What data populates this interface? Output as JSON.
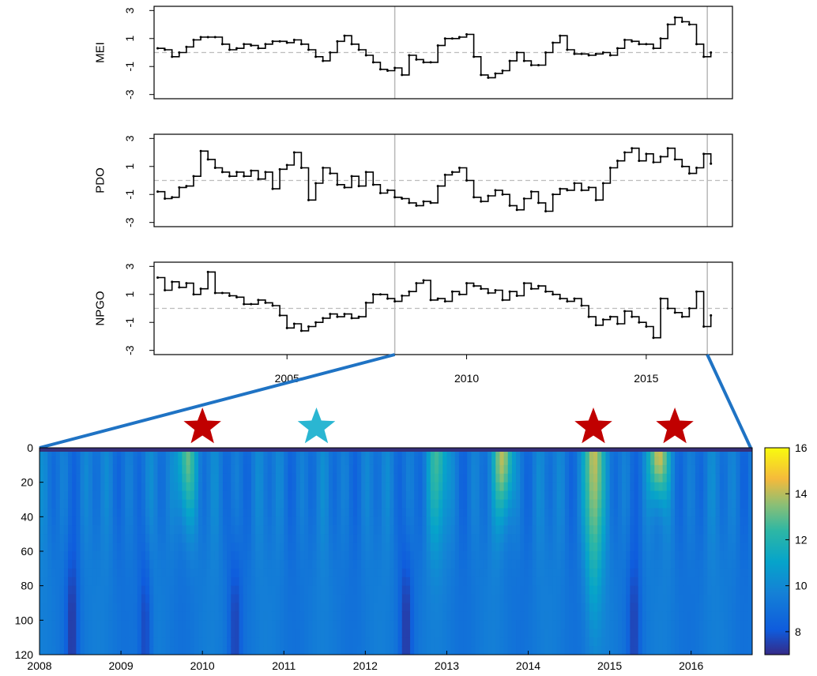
{
  "chart_data": [
    {
      "type": "line",
      "ylabel": "MEI",
      "xlim": [
        2001.3,
        2017.4
      ],
      "ylim": [
        -3.3,
        3.3
      ],
      "yticks": [
        "3",
        "1",
        "-1",
        "-3"
      ],
      "xticks": [],
      "reference_line": 0,
      "vlines": [
        2008.0,
        2016.7
      ],
      "series": [
        {
          "x": [
            2001.4,
            2001.6,
            2001.8,
            2002.0,
            2002.2,
            2002.4,
            2002.6,
            2002.8,
            2003.0,
            2003.2,
            2003.4,
            2003.6,
            2003.8,
            2004.0,
            2004.2,
            2004.4,
            2004.6,
            2004.8,
            2005.0,
            2005.2,
            2005.4,
            2005.6,
            2005.8,
            2006.0,
            2006.2,
            2006.4,
            2006.6,
            2006.8,
            2007.0,
            2007.2,
            2007.4,
            2007.6,
            2007.8,
            2008.0,
            2008.2,
            2008.4,
            2008.6,
            2008.8,
            2009.0,
            2009.2,
            2009.4,
            2009.6,
            2009.8,
            2010.0,
            2010.2,
            2010.4,
            2010.6,
            2010.8,
            2011.0,
            2011.2,
            2011.4,
            2011.6,
            2011.8,
            2012.0,
            2012.2,
            2012.4,
            2012.6,
            2012.8,
            2013.0,
            2013.2,
            2013.4,
            2013.6,
            2013.8,
            2014.0,
            2014.2,
            2014.4,
            2014.6,
            2014.8,
            2015.0,
            2015.2,
            2015.4,
            2015.6,
            2015.8,
            2016.0,
            2016.2,
            2016.4,
            2016.6,
            2016.8
          ],
          "values": [
            0.3,
            0.2,
            -0.3,
            0.0,
            0.4,
            0.9,
            1.1,
            1.1,
            1.1,
            0.6,
            0.2,
            0.3,
            0.6,
            0.5,
            0.3,
            0.6,
            0.8,
            0.8,
            0.7,
            0.9,
            0.6,
            0.2,
            -0.3,
            -0.6,
            0.0,
            0.8,
            1.2,
            0.6,
            0.2,
            -0.2,
            -0.7,
            -1.2,
            -1.3,
            -1.1,
            -1.6,
            -0.2,
            -0.5,
            -0.7,
            -0.7,
            0.5,
            1.0,
            1.0,
            1.1,
            1.3,
            -0.3,
            -1.6,
            -1.8,
            -1.5,
            -1.3,
            -0.6,
            0.0,
            -0.6,
            -0.9,
            -0.9,
            0.0,
            0.7,
            1.2,
            0.2,
            -0.1,
            -0.1,
            -0.2,
            -0.1,
            0.0,
            -0.2,
            0.3,
            0.9,
            0.8,
            0.6,
            0.6,
            0.3,
            1.0,
            2.0,
            2.5,
            2.2,
            2.0,
            0.6,
            -0.3,
            0.0
          ]
        }
      ]
    },
    {
      "type": "line",
      "ylabel": "PDO",
      "xlim": [
        2001.3,
        2017.4
      ],
      "ylim": [
        -3.3,
        3.3
      ],
      "yticks": [
        "3",
        "1",
        "-1",
        "-3"
      ],
      "xticks": [],
      "reference_line": 0,
      "vlines": [
        2008.0,
        2016.7
      ],
      "series": [
        {
          "x": [
            2001.4,
            2001.6,
            2001.8,
            2002.0,
            2002.2,
            2002.4,
            2002.6,
            2002.8,
            2003.0,
            2003.2,
            2003.4,
            2003.6,
            2003.8,
            2004.0,
            2004.2,
            2004.4,
            2004.6,
            2004.8,
            2005.0,
            2005.2,
            2005.4,
            2005.6,
            2005.8,
            2006.0,
            2006.2,
            2006.4,
            2006.6,
            2006.8,
            2007.0,
            2007.2,
            2007.4,
            2007.6,
            2007.8,
            2008.0,
            2008.2,
            2008.4,
            2008.6,
            2008.8,
            2009.0,
            2009.2,
            2009.4,
            2009.6,
            2009.8,
            2010.0,
            2010.2,
            2010.4,
            2010.6,
            2010.8,
            2011.0,
            2011.2,
            2011.4,
            2011.6,
            2011.8,
            2012.0,
            2012.2,
            2012.4,
            2012.6,
            2012.8,
            2013.0,
            2013.2,
            2013.4,
            2013.6,
            2013.8,
            2014.0,
            2014.2,
            2014.4,
            2014.6,
            2014.8,
            2015.0,
            2015.2,
            2015.4,
            2015.6,
            2015.8,
            2016.0,
            2016.2,
            2016.4,
            2016.6,
            2016.8
          ],
          "values": [
            -0.8,
            -1.3,
            -1.2,
            -0.5,
            -0.4,
            0.3,
            2.1,
            1.5,
            0.9,
            0.6,
            0.3,
            0.6,
            0.3,
            0.7,
            0.1,
            0.6,
            -0.6,
            0.8,
            1.1,
            2.0,
            0.9,
            -1.4,
            -0.2,
            0.9,
            0.5,
            -0.3,
            -0.5,
            0.3,
            -0.4,
            0.6,
            -0.3,
            -0.9,
            -0.7,
            -1.2,
            -1.3,
            -1.6,
            -1.8,
            -1.5,
            -1.6,
            -0.4,
            0.4,
            0.6,
            0.9,
            0.0,
            -1.2,
            -1.5,
            -1.1,
            -0.7,
            -1.0,
            -1.8,
            -2.1,
            -1.3,
            -0.8,
            -1.6,
            -2.2,
            -1.0,
            -0.6,
            -0.7,
            -0.2,
            -0.7,
            -0.5,
            -1.4,
            -0.2,
            0.9,
            1.4,
            2.0,
            2.3,
            1.4,
            1.9,
            1.3,
            1.7,
            2.3,
            1.5,
            1.0,
            0.5,
            0.9,
            1.9,
            1.2
          ]
        }
      ]
    },
    {
      "type": "line",
      "ylabel": "NPGO",
      "xlim": [
        2001.3,
        2017.4
      ],
      "ylim": [
        -3.3,
        3.3
      ],
      "yticks": [
        "3",
        "1",
        "-1",
        "-3"
      ],
      "xticks": [
        "2005",
        "2010",
        "2015"
      ],
      "reference_line": 0,
      "vlines": [
        2008.0,
        2016.7
      ],
      "series": [
        {
          "x": [
            2001.4,
            2001.6,
            2001.8,
            2002.0,
            2002.2,
            2002.4,
            2002.6,
            2002.8,
            2003.0,
            2003.2,
            2003.4,
            2003.6,
            2003.8,
            2004.0,
            2004.2,
            2004.4,
            2004.6,
            2004.8,
            2005.0,
            2005.2,
            2005.4,
            2005.6,
            2005.8,
            2006.0,
            2006.2,
            2006.4,
            2006.6,
            2006.8,
            2007.0,
            2007.2,
            2007.4,
            2007.6,
            2007.8,
            2008.0,
            2008.2,
            2008.4,
            2008.6,
            2008.8,
            2009.0,
            2009.2,
            2009.4,
            2009.6,
            2009.8,
            2010.0,
            2010.2,
            2010.4,
            2010.6,
            2010.8,
            2011.0,
            2011.2,
            2011.4,
            2011.6,
            2011.8,
            2012.0,
            2012.2,
            2012.4,
            2012.6,
            2012.8,
            2013.0,
            2013.2,
            2013.4,
            2013.6,
            2013.8,
            2014.0,
            2014.2,
            2014.4,
            2014.6,
            2014.8,
            2015.0,
            2015.2,
            2015.4,
            2015.6,
            2015.8,
            2016.0,
            2016.2,
            2016.4,
            2016.6,
            2016.8
          ],
          "values": [
            2.2,
            1.3,
            1.9,
            1.5,
            1.8,
            1.0,
            1.4,
            2.6,
            1.1,
            1.1,
            0.9,
            0.8,
            0.3,
            0.3,
            0.6,
            0.4,
            0.2,
            -0.5,
            -1.4,
            -1.1,
            -1.6,
            -1.3,
            -1.0,
            -0.7,
            -0.4,
            -0.6,
            -0.4,
            -0.7,
            -0.6,
            0.4,
            1.0,
            1.0,
            0.7,
            0.5,
            0.9,
            1.2,
            1.8,
            2.0,
            0.6,
            0.7,
            0.5,
            1.2,
            1.0,
            1.8,
            1.6,
            1.4,
            1.1,
            1.3,
            0.6,
            1.2,
            0.9,
            1.8,
            1.4,
            1.6,
            1.2,
            1.0,
            0.7,
            0.5,
            0.7,
            0.2,
            -0.6,
            -1.2,
            -0.8,
            -0.6,
            -1.1,
            -0.2,
            -0.6,
            -1.0,
            -1.3,
            -2.1,
            0.7,
            0.0,
            -0.3,
            -0.6,
            0.0,
            1.2,
            -1.3,
            -0.5
          ]
        }
      ]
    },
    {
      "type": "heatmap",
      "xticks": [
        "2008",
        "2009",
        "2010",
        "2011",
        "2012",
        "2013",
        "2014",
        "2015",
        "2016"
      ],
      "yticks": [
        "0",
        "20",
        "40",
        "60",
        "80",
        "100",
        "120"
      ],
      "ylim": [
        0,
        120
      ],
      "colorbar_ticks": [
        "16",
        "14",
        "12",
        "10",
        "8"
      ],
      "colorbar_range": [
        7,
        16
      ],
      "stars": [
        {
          "x": 2010.0,
          "color": "#c00000"
        },
        {
          "x": 2011.4,
          "color": "#2ab6d2"
        },
        {
          "x": 2014.8,
          "color": "#c00000"
        },
        {
          "x": 2015.8,
          "color": "#c00000"
        }
      ],
      "warm_bands": [
        {
          "x": 2009.8,
          "value": 13.5,
          "depth": 40
        },
        {
          "x": 2013.7,
          "value": 14.2,
          "depth": 35
        },
        {
          "x": 2014.8,
          "value": 14.6,
          "depth": 75
        },
        {
          "x": 2015.6,
          "value": 14.5,
          "depth": 25
        },
        {
          "x": 2012.9,
          "value": 12.5,
          "depth": 50
        }
      ],
      "cold_bands": [
        {
          "x": 2008.4,
          "value": 7.6
        },
        {
          "x": 2009.3,
          "value": 7.5
        },
        {
          "x": 2010.4,
          "value": 7.8
        },
        {
          "x": 2012.5,
          "value": 7.6
        },
        {
          "x": 2015.3,
          "value": 7.8
        }
      ]
    }
  ]
}
